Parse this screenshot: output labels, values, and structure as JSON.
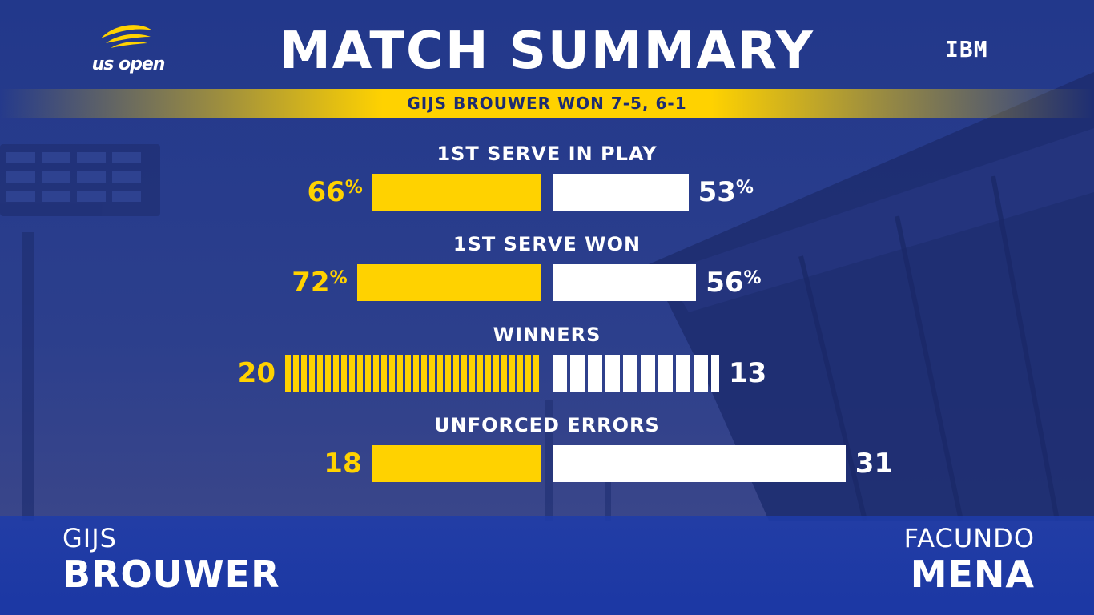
{
  "logo": {
    "text": "us open"
  },
  "sponsor": {
    "text": "IBM"
  },
  "title": "MATCH SUMMARY",
  "result": "GIJS BROUWER WON 7-5, 6-1",
  "players": {
    "left": {
      "first": "GIJS",
      "last": "BROUWER"
    },
    "right": {
      "first": "FACUNDO",
      "last": "MENA"
    }
  },
  "colors": {
    "left": "#ffd200",
    "right": "#ffffff",
    "background": "#243a8c"
  },
  "chart_data": {
    "type": "bar",
    "orientation": "horizontal-diverging",
    "series": [
      {
        "name": "GIJS BROUWER",
        "color": "#ffd200"
      },
      {
        "name": "FACUNDO MENA",
        "color": "#ffffff"
      }
    ],
    "stats": [
      {
        "label": "1ST SERVE IN PLAY",
        "left": 66,
        "right": 53,
        "unit": "%"
      },
      {
        "label": "1ST SERVE WON",
        "left": 72,
        "right": 56,
        "unit": "%"
      },
      {
        "label": "WINNERS",
        "left": 20,
        "right": 13,
        "unit": ""
      },
      {
        "label": "UNFORCED ERRORS",
        "left": 18,
        "right": 31,
        "unit": ""
      }
    ]
  }
}
